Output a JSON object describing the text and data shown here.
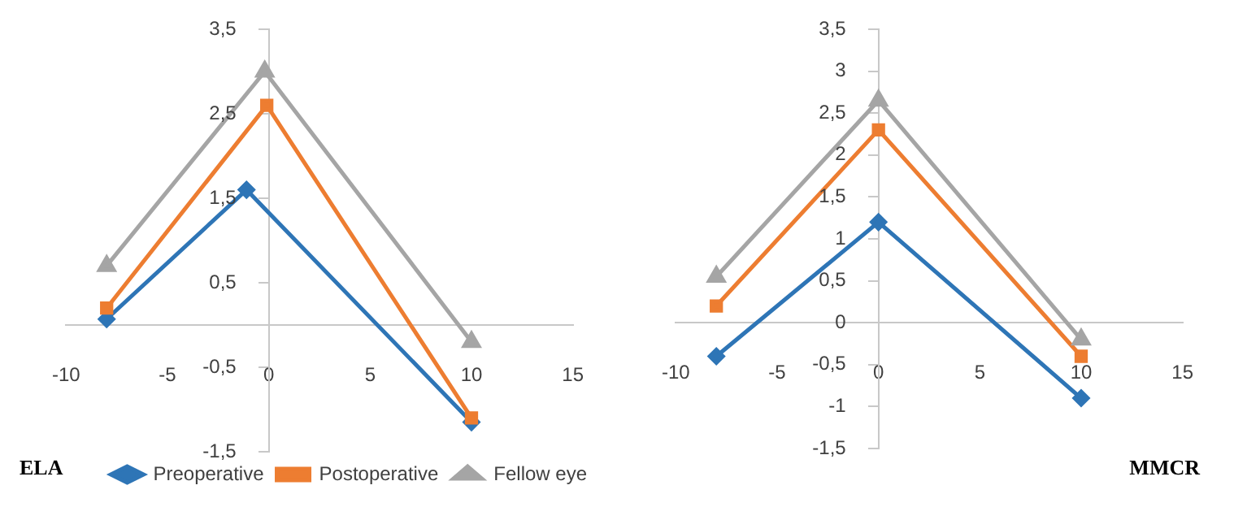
{
  "chart_data": [
    {
      "type": "line",
      "title": "ELA",
      "xlim": [
        -10,
        15
      ],
      "xticks": [
        -10,
        -5,
        0,
        5,
        10,
        15
      ],
      "ylim": [
        -1.5,
        3.5
      ],
      "yticks": [
        {
          "value": -1.5,
          "label": "-1,5"
        },
        {
          "value": -0.5,
          "label": "-0,5"
        },
        {
          "value": 0.5,
          "label": "0,5"
        },
        {
          "value": 1.5,
          "label": "1,5"
        },
        {
          "value": 2.5,
          "label": "2,5"
        },
        {
          "value": 3.5,
          "label": "3,5"
        }
      ],
      "grid": false,
      "legend": "bottom right",
      "line_style": "solid",
      "series": [
        {
          "name": "Preoperative",
          "color": "#2e75b6",
          "marker": "diamond",
          "x": [
            -8,
            -1.1,
            10
          ],
          "values": [
            0.07,
            1.6,
            -1.15
          ]
        },
        {
          "name": "Postoperative",
          "color": "#ed7d31",
          "marker": "square",
          "x": [
            -8,
            -0.1,
            10
          ],
          "values": [
            0.2,
            2.6,
            -1.1
          ]
        },
        {
          "name": "Fellow eye",
          "color": "#a5a5a5",
          "marker": "triangle",
          "x": [
            -8,
            -0.2,
            10
          ],
          "values": [
            0.7,
            3.0,
            -0.2
          ]
        }
      ]
    },
    {
      "type": "line",
      "title": "MMCR",
      "xlim": [
        -10,
        15
      ],
      "xticks": [
        -10,
        -5,
        0,
        5,
        10,
        15
      ],
      "ylim": [
        -1.5,
        3.5
      ],
      "yticks": [
        {
          "value": -1.5,
          "label": "-1,5"
        },
        -1,
        {
          "value": -0.5,
          "label": "-0,5"
        },
        0,
        {
          "value": 0.5,
          "label": "0,5"
        },
        1,
        {
          "value": 1.5,
          "label": "1,5"
        },
        2,
        {
          "value": 2.5,
          "label": "2,5"
        },
        3,
        {
          "value": 3.5,
          "label": "3,5"
        }
      ],
      "grid": false,
      "legend": false,
      "line_style": "solid",
      "series": [
        {
          "color": "#2e75b6",
          "marker": "diamond",
          "x": [
            -8,
            0,
            10
          ],
          "values": [
            -0.4,
            1.2,
            -0.9
          ]
        },
        {
          "color": "#ed7d31",
          "marker": "square",
          "x": [
            -8,
            0,
            10
          ],
          "values": [
            0.2,
            2.3,
            -0.4
          ]
        },
        {
          "color": "#a5a5a5",
          "marker": "triangle",
          "x": [
            -8,
            0,
            10
          ],
          "values": [
            0.55,
            2.65,
            -0.2
          ]
        }
      ]
    }
  ]
}
